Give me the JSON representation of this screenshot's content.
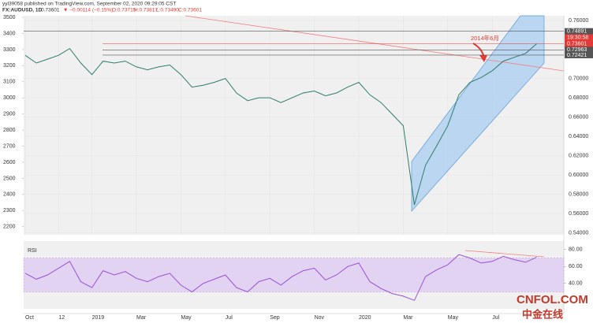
{
  "chart_data": {
    "type": "line",
    "author": "yyl39058 published on TradingView.com, September 02, 2020 09:29:05 CST",
    "symbol": "FX:AUDUSD, 1D",
    "last": "0.73601",
    "change": "▼ −0.00114 (−0.15%)",
    "ohlc": [
      "O:0.73715",
      "H:0.73817",
      "L:0.73490",
      "C:0.73601"
    ],
    "annotation": "2014年6月",
    "watermark": [
      "CNFOL.COM",
      "中金在线"
    ],
    "countdown": "19:30:58",
    "categories": [
      "Oct",
      null,
      null,
      "12",
      null,
      null,
      "2019",
      null,
      null,
      null,
      "Mar",
      null,
      null,
      null,
      "May",
      null,
      null,
      null,
      "Jul",
      null,
      null,
      null,
      "Sep",
      null,
      null,
      null,
      "Nov",
      null,
      null,
      null,
      "2020",
      null,
      null,
      null,
      "Mar",
      null,
      null,
      null,
      "May",
      null,
      null,
      null,
      "Jul",
      null,
      null,
      null,
      null
    ],
    "series": [
      {
        "name": "AUDUSD",
        "color": "#2e7d6b",
        "values": [
          0.724,
          0.716,
          0.72,
          0.724,
          0.731,
          0.716,
          0.704,
          0.718,
          0.716,
          0.718,
          0.712,
          0.709,
          0.712,
          0.714,
          0.704,
          0.691,
          0.693,
          0.696,
          0.7,
          0.685,
          0.677,
          0.68,
          0.68,
          0.675,
          0.68,
          0.685,
          0.687,
          0.682,
          0.685,
          0.691,
          0.696,
          0.683,
          0.675,
          0.663,
          0.651,
          0.569,
          0.61,
          0.63,
          0.651,
          0.683,
          0.696,
          0.701,
          0.708,
          0.718,
          0.722,
          0.726,
          0.736
        ]
      }
    ],
    "ylim": [
      0.538,
      0.765
    ],
    "yticks": [
      {
        "value": 0.54,
        "label": "0.54000"
      },
      {
        "value": 0.56,
        "label": "0.56000"
      },
      {
        "value": 0.58,
        "label": "0.58000"
      },
      {
        "value": 0.6,
        "label": "0.60000"
      },
      {
        "value": 0.62,
        "label": "0.62000"
      },
      {
        "value": 0.64,
        "label": "0.64000"
      },
      {
        "value": 0.66,
        "label": "0.66000"
      },
      {
        "value": 0.68,
        "label": "0.68000"
      },
      {
        "value": 0.7,
        "label": "0.70000"
      },
      {
        "value": 0.76,
        "label": "0.76000"
      }
    ],
    "price_tags": [
      {
        "value": 0.74891,
        "label": "0.74891",
        "color": "#555"
      },
      {
        "value": 0.73601,
        "label": "0.73601",
        "color": "#e53935"
      },
      {
        "value": 0.72963,
        "label": "0.72963",
        "color": "#555"
      },
      {
        "value": 0.72421,
        "label": "0.72421",
        "color": "#555"
      }
    ],
    "y2lim": [
      2150,
      3510
    ],
    "y2ticks": [
      2200,
      2300,
      2400,
      2500,
      2600,
      2700,
      2800,
      2900,
      3000,
      3100,
      3200,
      3300,
      3400,
      3500
    ],
    "grid": true,
    "rsi": {
      "name": "RSI",
      "color": "#9c4fd6",
      "band": [
        30,
        70
      ],
      "ylim": [
        10,
        90
      ],
      "yticks": [
        {
          "value": 40,
          "label": "40.00"
        },
        {
          "value": 60,
          "label": "60.00"
        },
        {
          "value": 80,
          "label": "80.00"
        }
      ],
      "values": [
        52,
        45,
        50,
        58,
        66,
        42,
        35,
        55,
        50,
        54,
        46,
        42,
        48,
        52,
        38,
        30,
        40,
        45,
        50,
        35,
        30,
        42,
        46,
        38,
        48,
        55,
        58,
        44,
        50,
        60,
        64,
        42,
        34,
        28,
        25,
        20,
        48,
        56,
        62,
        74,
        70,
        64,
        66,
        72,
        68,
        65,
        71
      ]
    }
  }
}
